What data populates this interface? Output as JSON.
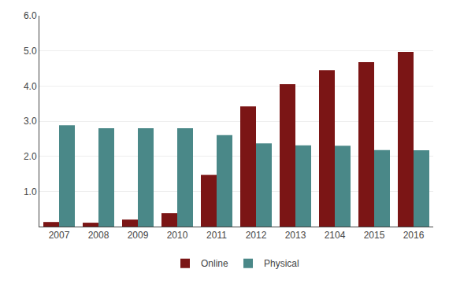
{
  "chart_data": {
    "type": "bar",
    "categories": [
      "2007",
      "2008",
      "2009",
      "2010",
      "2011",
      "2012",
      "2013",
      "2104",
      "2015",
      "2016"
    ],
    "series": [
      {
        "name": "Online",
        "color": "#7B1515",
        "values": [
          0.13,
          0.11,
          0.2,
          0.38,
          1.47,
          3.42,
          4.05,
          4.45,
          4.68,
          4.97
        ]
      },
      {
        "name": "Physical",
        "color": "#4A8888",
        "values": [
          2.88,
          2.8,
          2.8,
          2.8,
          2.6,
          2.37,
          2.31,
          2.3,
          2.18,
          2.17
        ]
      }
    ],
    "ylim": [
      0,
      6.0
    ],
    "yticks": [
      {
        "value": 1.0,
        "label": "1.0"
      },
      {
        "value": 2.0,
        "label": "2.0"
      },
      {
        "value": 3.0,
        "label": "3.0"
      },
      {
        "value": 4.0,
        "label": "4.0"
      },
      {
        "value": 5.0,
        "label": "5.0"
      },
      {
        "value": 6.0,
        "label": "6.0"
      }
    ],
    "grid": true,
    "legend": "bottom"
  }
}
